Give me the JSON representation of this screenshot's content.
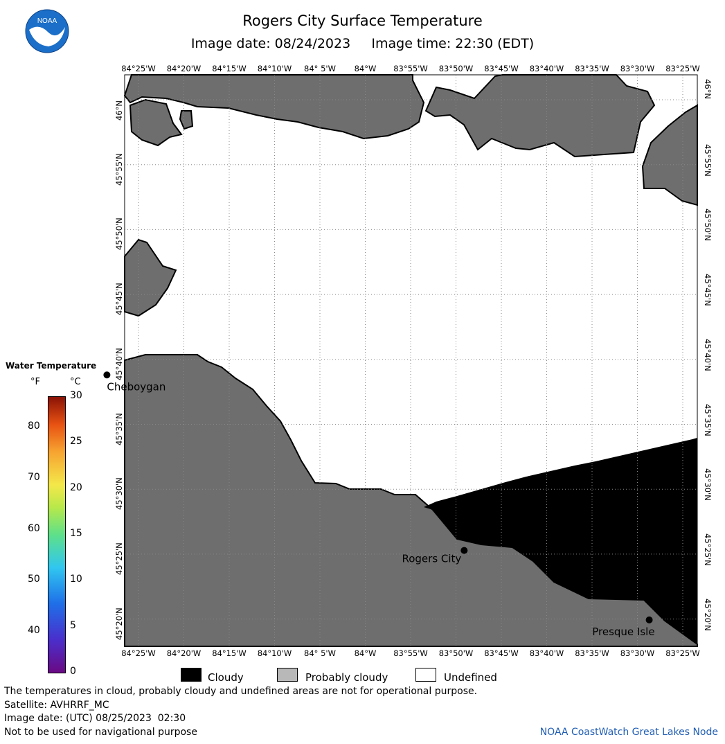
{
  "title": "Rogers City Surface Temperature",
  "subtitle": {
    "date_label": "Image date:",
    "date": "08/24/2023",
    "time_label": "Image time:",
    "time": "22:30 (EDT)"
  },
  "logo": {
    "text": "NOAA",
    "colors": {
      "outer": "#ffffff",
      "sky": "#1b6fc8",
      "bird": "#ffffff"
    }
  },
  "map": {
    "lon_labels": [
      "84°25'W",
      "84°20'W",
      "84°15'W",
      "84°10'W",
      "84° 5'W",
      "84°W",
      "83°55'W",
      "83°50'W",
      "83°45'W",
      "83°40'W",
      "83°35'W",
      "83°30'W",
      "83°25'W"
    ],
    "lat_labels": [
      "46°N",
      "45°55'N",
      "45°50'N",
      "45°45'N",
      "45°40'N",
      "45°35'N",
      "45°30'N",
      "45°25'N",
      "45°20'N"
    ],
    "cities": [
      {
        "name": "Cheboygan",
        "lon": -84.4747,
        "lat": 45.6467
      },
      {
        "name": "Rogers City",
        "lon": -83.8183,
        "lat": 45.4214
      },
      {
        "name": "Presque Isle",
        "lon": -83.4783,
        "lat": 45.3322
      }
    ],
    "colors": {
      "land": "#6e6e6e",
      "cloudy": "#000000",
      "undefined": "#ffffff",
      "grid": "#888888"
    }
  },
  "legend": {
    "title": "Water Temperature",
    "unit_f": "°F",
    "unit_c": "°C",
    "f_ticks": [
      "80",
      "70",
      "60",
      "50",
      "40"
    ],
    "c_ticks": [
      "30",
      "25",
      "20",
      "15",
      "10",
      "5",
      "0"
    ],
    "range_c": [
      0,
      30
    ]
  },
  "key": {
    "cloudy": "Cloudy",
    "probably_cloudy": "Probably cloudy",
    "undefined": "Undefined"
  },
  "footer": {
    "disclaimer": "The temperatures in cloud, probably cloudy and undefined areas are not for operational purpose.",
    "satellite": "Satellite: AVHRRF_MC",
    "utc_date": "Image date: (UTC) 08/25/2023  02:30",
    "nav": "Not to be used for navigational purpose",
    "credit": "NOAA CoastWatch Great Lakes Node"
  }
}
